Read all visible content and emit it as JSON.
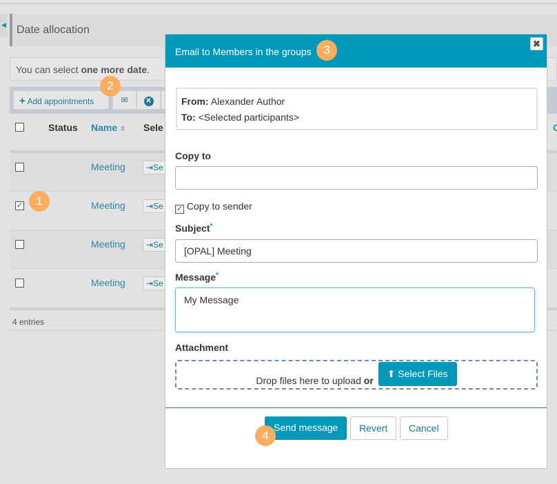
{
  "page": {
    "title": "Date allocation",
    "info_prefix": "You can select ",
    "info_bold": "one more date",
    "info_suffix": ".",
    "toolbar": {
      "add_label": "Add appointments"
    },
    "table": {
      "headers": {
        "status": "Status",
        "name": "Name",
        "select": "Sele",
        "last": "C"
      },
      "rows": [
        {
          "name": "Meeting",
          "checked": false,
          "select_label": "Se"
        },
        {
          "name": "Meeting",
          "checked": true,
          "select_label": "Se"
        },
        {
          "name": "Meeting",
          "checked": false,
          "select_label": "Se"
        },
        {
          "name": "Meeting",
          "checked": false,
          "select_label": "Se"
        }
      ],
      "footer": "4 entries"
    }
  },
  "modal": {
    "title": "Email to Members in the groups",
    "from_label": "From:",
    "from_value": "Alexander Author",
    "to_label": "To:",
    "to_value": "<Selected participants>",
    "copy_to_label": "Copy to",
    "copy_to_value": "",
    "copy_sender_label": "Copy to sender",
    "copy_sender_checked": true,
    "subject_label": "Subject",
    "subject_value": "[OPAL] Meeting",
    "message_label": "Message",
    "message_value": "My Message",
    "required_mark": "*",
    "attachment_label": "Attachment",
    "drop_text": "Drop files here to upload",
    "or_text": "or",
    "select_files": "Select Files",
    "send": "Send message",
    "revert": "Revert",
    "cancel": "Cancel"
  },
  "badges": [
    "1",
    "2",
    "3",
    "4"
  ],
  "colors": {
    "accent": "#0099bb",
    "badge": "#fcae60",
    "link": "#2b8aa5"
  }
}
